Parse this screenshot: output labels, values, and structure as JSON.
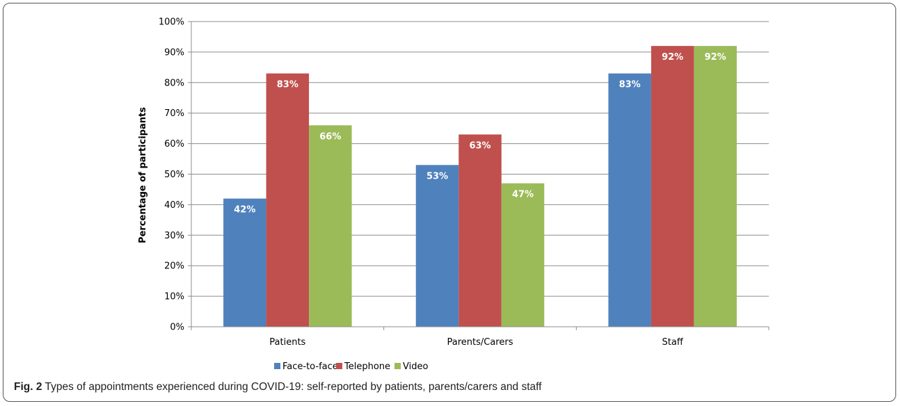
{
  "caption": {
    "label": "Fig. 2",
    "text": "Types of appointments experienced during COVID-19: self-reported by patients, parents/carers and staff"
  },
  "chart_data": {
    "type": "bar",
    "categories": [
      "Patients",
      "Parents/Carers",
      "Staff"
    ],
    "series": [
      {
        "name": "Face-to-face",
        "color": "#4F81BD",
        "values": [
          42,
          53,
          83
        ],
        "labels": [
          "42%",
          "53%",
          "83%"
        ]
      },
      {
        "name": "Telephone",
        "color": "#C0504D",
        "values": [
          83,
          63,
          92
        ],
        "labels": [
          "83%",
          "63%",
          "92%"
        ]
      },
      {
        "name": "Video",
        "color": "#9BBB59",
        "values": [
          66,
          47,
          92
        ],
        "labels": [
          "66%",
          "47%",
          "92%"
        ]
      }
    ],
    "ylabel": "Percentage of participants",
    "xlabel": "",
    "ylim": [
      0,
      100
    ],
    "yticks": [
      "0%",
      "10%",
      "20%",
      "30%",
      "40%",
      "50%",
      "60%",
      "70%",
      "80%",
      "90%",
      "100%"
    ],
    "grid": true,
    "legend_position": "bottom"
  }
}
